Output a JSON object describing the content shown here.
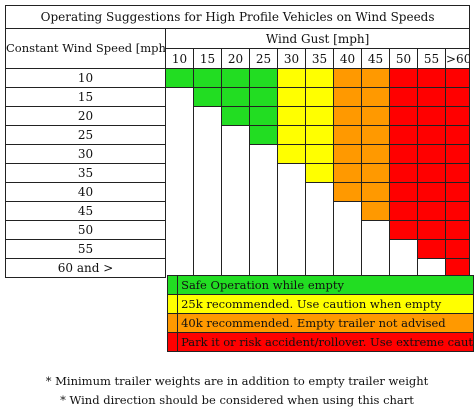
{
  "title": "Operating Suggestions for High Profile Vehicles on Wind Speeds",
  "row_header": "Constant Wind Speed [mph]",
  "col_header": "Wind Gust [mph]",
  "gusts": [
    "10",
    "15",
    "20",
    "25",
    "30",
    "35",
    "40",
    "45",
    "50",
    "55",
    ">60"
  ],
  "speeds": [
    "10",
    "15",
    "20",
    "25",
    "30",
    "35",
    "40",
    "45",
    "50",
    "55",
    "60 and >"
  ],
  "colors": {
    "green": "#22dd22",
    "yellow": "#ffff00",
    "orange": "#ff9900",
    "red": "#ff0000",
    "empty": "#ffffff"
  },
  "grid": [
    [
      "green",
      "green",
      "green",
      "green",
      "yellow",
      "yellow",
      "orange",
      "orange",
      "red",
      "red",
      "red"
    ],
    [
      "empty",
      "green",
      "green",
      "green",
      "yellow",
      "yellow",
      "orange",
      "orange",
      "red",
      "red",
      "red"
    ],
    [
      "empty",
      "empty",
      "green",
      "green",
      "yellow",
      "yellow",
      "orange",
      "orange",
      "red",
      "red",
      "red"
    ],
    [
      "empty",
      "empty",
      "empty",
      "green",
      "yellow",
      "yellow",
      "orange",
      "orange",
      "red",
      "red",
      "red"
    ],
    [
      "empty",
      "empty",
      "empty",
      "empty",
      "yellow",
      "yellow",
      "orange",
      "orange",
      "red",
      "red",
      "red"
    ],
    [
      "empty",
      "empty",
      "empty",
      "empty",
      "empty",
      "yellow",
      "orange",
      "orange",
      "red",
      "red",
      "red"
    ],
    [
      "empty",
      "empty",
      "empty",
      "empty",
      "empty",
      "empty",
      "orange",
      "orange",
      "red",
      "red",
      "red"
    ],
    [
      "empty",
      "empty",
      "empty",
      "empty",
      "empty",
      "empty",
      "empty",
      "orange",
      "red",
      "red",
      "red"
    ],
    [
      "empty",
      "empty",
      "empty",
      "empty",
      "empty",
      "empty",
      "empty",
      "empty",
      "red",
      "red",
      "red"
    ],
    [
      "empty",
      "empty",
      "empty",
      "empty",
      "empty",
      "empty",
      "empty",
      "empty",
      "empty",
      "red",
      "red"
    ],
    [
      "empty",
      "empty",
      "empty",
      "empty",
      "empty",
      "empty",
      "empty",
      "empty",
      "empty",
      "empty",
      "red"
    ]
  ],
  "legend": [
    {
      "color": "green",
      "text": "Safe Operation while empty"
    },
    {
      "color": "yellow",
      "text": "25k recommended. Use caution when empty"
    },
    {
      "color": "orange",
      "text": "40k recommended. Empty trailer not advised"
    },
    {
      "color": "red",
      "text": "Park it or risk accident/rollover. Use extreme caut"
    }
  ],
  "notes": [
    "* Minimum trailer weights are in addition to empty trailer weight",
    "* Wind direction should be considered when using this chart"
  ]
}
